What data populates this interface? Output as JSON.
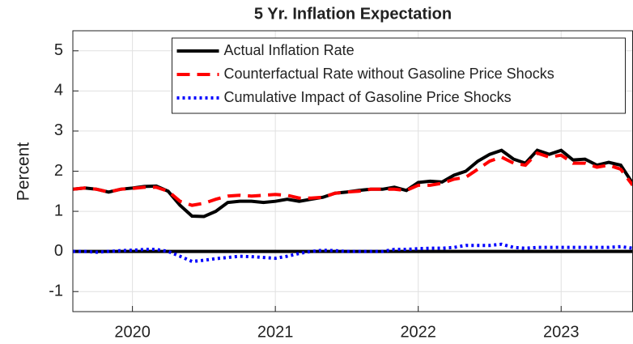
{
  "chart_data": {
    "type": "line",
    "title": "5 Yr. Inflation Expectation",
    "y_label": "Percent",
    "x": [
      2019.583,
      2019.667,
      2019.75,
      2019.833,
      2019.917,
      2020,
      2020.083,
      2020.167,
      2020.25,
      2020.333,
      2020.417,
      2020.5,
      2020.583,
      2020.667,
      2020.75,
      2020.833,
      2020.917,
      2021,
      2021.083,
      2021.167,
      2021.25,
      2021.333,
      2021.417,
      2021.5,
      2021.583,
      2021.667,
      2021.75,
      2021.833,
      2021.917,
      2022,
      2022.083,
      2022.167,
      2022.25,
      2022.333,
      2022.417,
      2022.5,
      2022.583,
      2022.667,
      2022.75,
      2022.833,
      2022.917,
      2023,
      2023.083,
      2023.167,
      2023.25,
      2023.333,
      2023.417,
      2023.5
    ],
    "series": [
      {
        "name": "Actual Inflation Rate",
        "color": "#000000",
        "style": "solid",
        "values": [
          1.55,
          1.58,
          1.55,
          1.48,
          1.55,
          1.58,
          1.62,
          1.63,
          1.5,
          1.15,
          0.88,
          0.87,
          1.0,
          1.22,
          1.25,
          1.25,
          1.22,
          1.25,
          1.3,
          1.25,
          1.3,
          1.35,
          1.45,
          1.48,
          1.52,
          1.55,
          1.55,
          1.6,
          1.52,
          1.72,
          1.75,
          1.73,
          1.9,
          2.0,
          2.25,
          2.42,
          2.52,
          2.3,
          2.2,
          2.52,
          2.42,
          2.52,
          2.28,
          2.3,
          2.15,
          2.22,
          2.15,
          1.7
        ]
      },
      {
        "name": "Counterfactual Rate without Gasoline Price Shocks",
        "color": "#ff0000",
        "style": "dashed",
        "values": [
          1.55,
          1.58,
          1.55,
          1.48,
          1.55,
          1.57,
          1.6,
          1.6,
          1.5,
          1.25,
          1.15,
          1.2,
          1.3,
          1.38,
          1.4,
          1.38,
          1.4,
          1.42,
          1.4,
          1.33,
          1.33,
          1.35,
          1.45,
          1.48,
          1.5,
          1.55,
          1.55,
          1.55,
          1.52,
          1.65,
          1.65,
          1.7,
          1.8,
          1.85,
          2.05,
          2.25,
          2.35,
          2.2,
          2.15,
          2.45,
          2.35,
          2.4,
          2.2,
          2.2,
          2.1,
          2.15,
          2.05,
          1.65
        ]
      },
      {
        "name": "Cumulative Impact of Gasoline Price Shocks",
        "color": "#0000ff",
        "style": "dotted",
        "values": [
          0,
          0,
          -0.02,
          0,
          0.02,
          0.03,
          0.05,
          0.05,
          0,
          -0.12,
          -0.25,
          -0.22,
          -0.18,
          -0.15,
          -0.12,
          -0.13,
          -0.15,
          -0.17,
          -0.12,
          -0.05,
          0,
          0.03,
          0.02,
          0,
          0,
          0,
          0,
          0.05,
          0.05,
          0.07,
          0.08,
          0.08,
          0.1,
          0.15,
          0.15,
          0.15,
          0.18,
          0.1,
          0.08,
          0.1,
          0.1,
          0.1,
          0.1,
          0.1,
          0.1,
          0.1,
          0.12,
          0.08
        ]
      }
    ],
    "reference_line": 0,
    "xlim": [
      2019.583,
      2023.5
    ],
    "xticks": [
      2020,
      2021,
      2022,
      2023
    ],
    "ylim": [
      -1.5,
      5.5
    ],
    "yticks": [
      -1,
      0,
      1,
      2,
      3,
      4,
      5
    ],
    "grid": true,
    "legend": "upper right"
  }
}
